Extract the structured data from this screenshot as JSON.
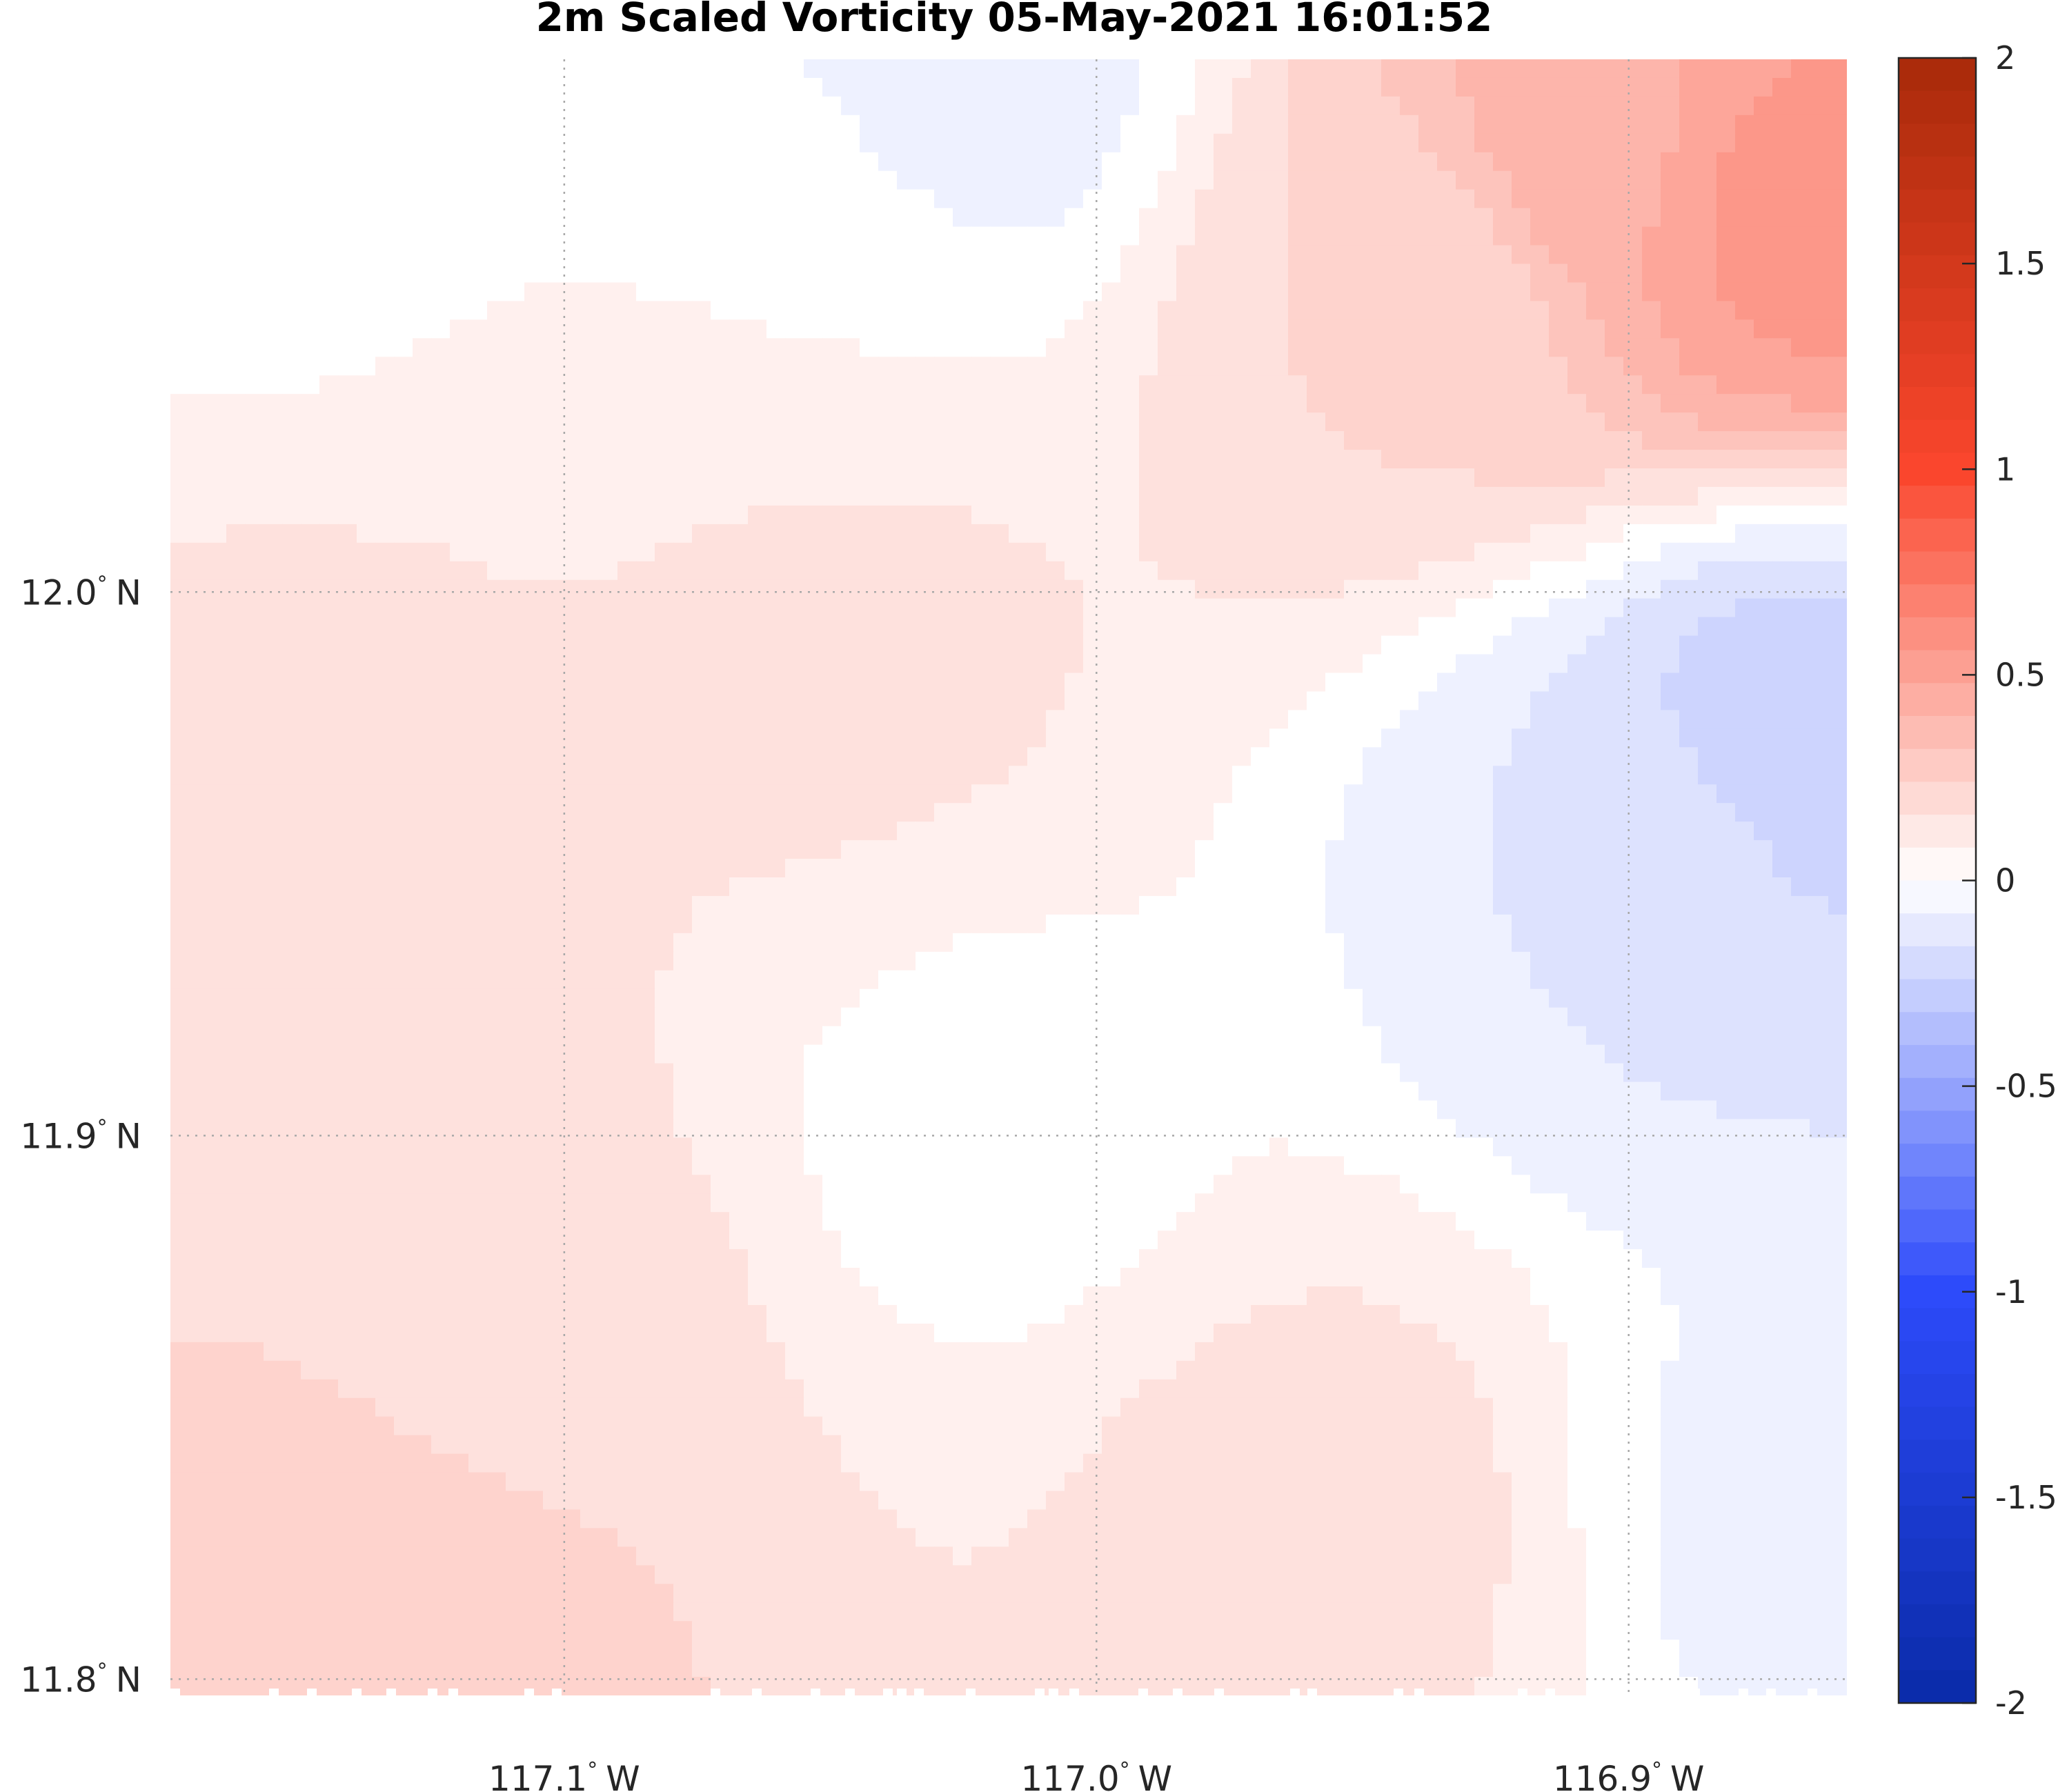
{
  "chart_data": {
    "type": "heatmap",
    "title": "2m Scaled Vorticity  05-May-2021 16:01:52",
    "xlabel": "",
    "ylabel": "",
    "x_ticks": [
      {
        "value": -117.1,
        "label": "117.1",
        "degree": "°",
        "hemisphere": "W"
      },
      {
        "value": -117.0,
        "label": "117.0",
        "degree": "°",
        "hemisphere": "W"
      },
      {
        "value": -116.9,
        "label": "116.9",
        "degree": "°",
        "hemisphere": "W"
      }
    ],
    "y_ticks": [
      {
        "value": 12.0,
        "label": "12.0",
        "degree": "°",
        "hemisphere": "N"
      },
      {
        "value": 11.9,
        "label": "11.9",
        "degree": "°",
        "hemisphere": "N"
      },
      {
        "value": 11.8,
        "label": "11.8",
        "degree": "°",
        "hemisphere": "N"
      }
    ],
    "xlim": [
      -117.174,
      -116.859
    ],
    "ylim": [
      11.797,
      12.098
    ],
    "grid": true,
    "colorbar": {
      "position": "right",
      "range": [
        -2,
        2
      ],
      "levels": 50,
      "colormap": "blue-white-red",
      "color_low": "#0a2ba8",
      "color_mid": "#ffffff",
      "color_high": "#a82a0a",
      "ticks": [
        {
          "value": 2,
          "label": "2"
        },
        {
          "value": 1.5,
          "label": "1.5"
        },
        {
          "value": 1,
          "label": "1"
        },
        {
          "value": 0.5,
          "label": "0.5"
        },
        {
          "value": 0,
          "label": "0"
        },
        {
          "value": -0.5,
          "label": "-0.5"
        },
        {
          "value": -1,
          "label": "-1"
        },
        {
          "value": -1.5,
          "label": "-1.5"
        },
        {
          "value": -2,
          "label": "-2"
        }
      ]
    },
    "field_features": [
      {
        "lon": -116.87,
        "lat": 12.07,
        "value": 0.56
      },
      {
        "lon": -116.905,
        "lat": 12.08,
        "value": 0.42
      },
      {
        "lon": -116.94,
        "lat": 12.055,
        "value": 0.2
      },
      {
        "lon": -117.025,
        "lat": 12.095,
        "value": -0.08
      },
      {
        "lon": -116.87,
        "lat": 11.97,
        "value": -0.26
      },
      {
        "lon": -116.895,
        "lat": 11.95,
        "value": -0.12
      },
      {
        "lon": -116.86,
        "lat": 11.83,
        "value": -0.06
      },
      {
        "lon": -117.15,
        "lat": 11.95,
        "value": 0.18
      },
      {
        "lon": -117.11,
        "lat": 11.86,
        "value": 0.17
      },
      {
        "lon": -117.05,
        "lat": 11.99,
        "value": 0.14
      },
      {
        "lon": -116.96,
        "lat": 11.83,
        "value": 0.15
      },
      {
        "lon": -117.02,
        "lat": 11.9,
        "value": 0.02
      },
      {
        "lon": -117.16,
        "lat": 12.085,
        "value": 0.02
      },
      {
        "lon": -117.06,
        "lat": 12.06,
        "value": 0.04
      },
      {
        "lon": -117.13,
        "lat": 11.82,
        "value": 0.24
      }
    ]
  }
}
